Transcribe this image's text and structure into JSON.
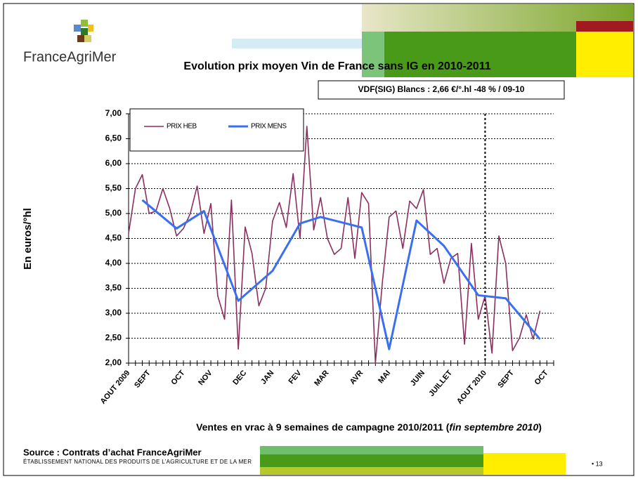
{
  "header": {
    "logo": "FranceAgriMer"
  },
  "chart_data": {
    "type": "line",
    "title": "Evolution prix moyen Vin de France sans IG en 2010-2011",
    "annotation": "VDF(SIG) Blancs : 2,66 €/°.hl -48 % / 09-10",
    "y_label": "En euros/°hl",
    "x_label": [
      "Ventes en vrac à 9 semaines de campagne 2010/2011 (",
      "fin septembre  2010",
      ")"
    ],
    "categories": [
      "AOUT 2009",
      null,
      null,
      "SEPT",
      null,
      null,
      null,
      null,
      "OCT",
      null,
      null,
      null,
      "NOV",
      null,
      null,
      null,
      null,
      "DEC",
      null,
      null,
      null,
      "JAN",
      null,
      null,
      null,
      "FEV",
      null,
      null,
      null,
      "MAR",
      null,
      null,
      null,
      null,
      "AVR",
      null,
      null,
      null,
      "MAI",
      null,
      null,
      null,
      null,
      "JUIN",
      null,
      null,
      null,
      "JUILLET",
      null,
      null,
      null,
      null,
      "AOUT 2010",
      null,
      null,
      null,
      "SEPT",
      null,
      null,
      null,
      null,
      "OCT",
      null
    ],
    "series": [
      {
        "name": "PRIX HEB",
        "color": "#8b2f5e",
        "values": [
          4.6,
          5.5,
          5.78,
          5.0,
          5.05,
          5.5,
          5.1,
          4.55,
          4.7,
          5.0,
          5.55,
          4.6,
          5.2,
          3.35,
          2.88,
          5.27,
          2.28,
          4.73,
          4.2,
          3.15,
          3.5,
          4.85,
          5.22,
          4.72,
          5.8,
          4.5,
          6.75,
          4.67,
          5.32,
          4.5,
          4.18,
          4.3,
          5.32,
          4.1,
          5.42,
          5.2,
          2.0,
          3.6,
          4.93,
          5.05,
          4.3,
          5.25,
          5.1,
          5.48,
          4.18,
          4.3,
          3.6,
          4.1,
          4.2,
          2.38,
          4.4,
          2.88,
          3.35,
          2.2,
          4.55,
          4.0,
          2.25,
          2.5,
          2.97,
          2.48,
          3.05,
          null,
          null
        ]
      },
      {
        "name": "PRIX MENS",
        "color": "#3a6ff0",
        "x": [
          2,
          7,
          11,
          16,
          21,
          25,
          28,
          34,
          38,
          42,
          46,
          51,
          55,
          60
        ],
        "values": [
          5.27,
          4.7,
          5.05,
          3.25,
          3.85,
          4.8,
          4.93,
          4.72,
          2.28,
          4.86,
          4.35,
          3.36,
          3.3,
          2.48
        ]
      }
    ],
    "ylim": [
      2.0,
      7.0
    ],
    "yticks": [
      {
        "value": 2.0,
        "label": "2,00"
      },
      {
        "value": 2.5,
        "label": "2,50"
      },
      {
        "value": 3.0,
        "label": "3,00"
      },
      {
        "value": 3.5,
        "label": "3,50"
      },
      {
        "value": 4.0,
        "label": "4,00"
      },
      {
        "value": 4.5,
        "label": "4,50"
      },
      {
        "value": 5.0,
        "label": "5,00"
      },
      {
        "value": 5.5,
        "label": "5,50"
      },
      {
        "value": 6.0,
        "label": "6,00"
      },
      {
        "value": 6.5,
        "label": "6,50"
      },
      {
        "value": 7.0,
        "label": "7,00"
      }
    ],
    "grid": true,
    "legend": "top-left"
  },
  "footer": {
    "source": "Source : Contrats d’achat FranceAgriMer",
    "org": "ÉTABLISSEMENT NATIONAL DES PRODUITS DE L’AGRICULTURE ET DE LA MER",
    "page": "• 13"
  }
}
